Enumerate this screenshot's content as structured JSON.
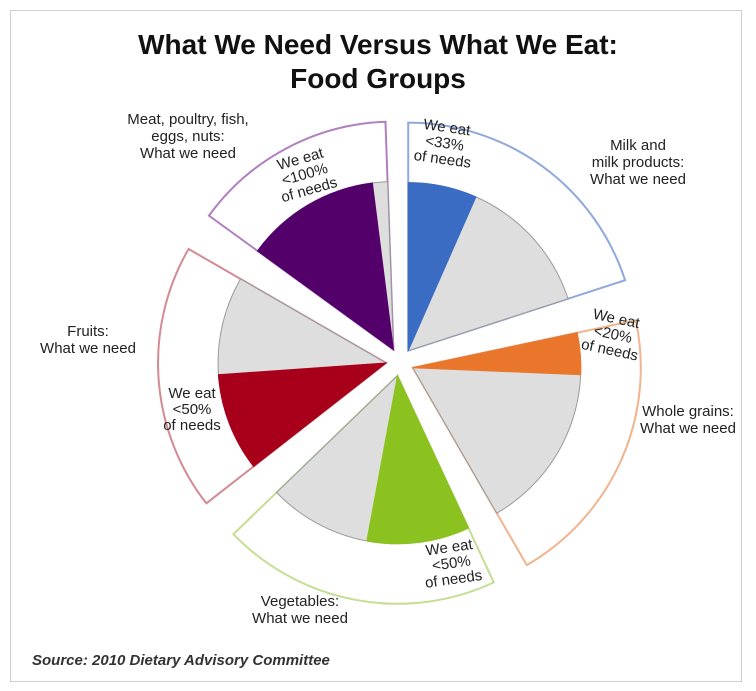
{
  "chart_data": {
    "type": "pie",
    "title": "What We Need Versus What We Eat:",
    "subtitle": "Food Groups",
    "source": "Source: 2010 Dietary Advisory Committee",
    "groups": [
      {
        "need_label": [
          "Milk and",
          "milk products:",
          "What we need"
        ],
        "eat_label": [
          "We eat",
          "<33%",
          "of needs"
        ],
        "eat_fraction": 0.33,
        "color": "#3a6cc4",
        "outline": "#8fa9dc"
      },
      {
        "need_label": [
          "Whole grains:",
          "What we need"
        ],
        "eat_label": [
          "We eat",
          "<20%",
          "of needs"
        ],
        "eat_fraction": 0.2,
        "color": "#e9762b",
        "outline": "#f0b48e"
      },
      {
        "need_label": [
          "Vegetables:",
          "What we need"
        ],
        "eat_label": [
          "We eat",
          "<50%",
          "of needs"
        ],
        "eat_fraction": 0.5,
        "color": "#8cc21f",
        "outline": "#c4de94"
      },
      {
        "need_label": [
          "Fruits:",
          "What we need"
        ],
        "eat_label": [
          "We eat",
          "<50%",
          "of needs"
        ],
        "eat_fraction": 0.5,
        "color": "#a8001a",
        "outline": "#d48a93"
      },
      {
        "need_label": [
          "Meat, poultry, fish,",
          "eggs, nuts:",
          "What we need"
        ],
        "eat_label": [
          "We eat",
          "<100%",
          "of needs"
        ],
        "eat_fraction": 0.9,
        "color": "#54006a",
        "outline": "#b07fc0"
      }
    ]
  }
}
